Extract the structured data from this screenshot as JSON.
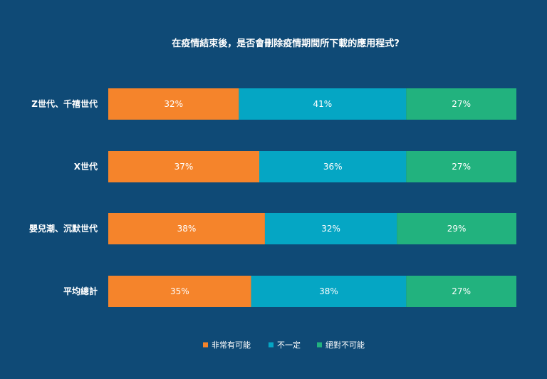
{
  "chart_data": {
    "type": "bar",
    "orientation": "horizontal",
    "stacked": true,
    "normalized": true,
    "title": "在疫情結束後，是否會刪除疫情期間所下載的應用程式?",
    "categories": [
      "Z世代、千禧世代",
      "X世代",
      "嬰兒潮、沉默世代",
      "平均總計"
    ],
    "series": [
      {
        "name": "非常有可能",
        "color": "#f5842b",
        "values": [
          32,
          37,
          38,
          35
        ]
      },
      {
        "name": "不一定",
        "color": "#05a6c4",
        "values": [
          41,
          36,
          32,
          38
        ]
      },
      {
        "name": "絕對不可能",
        "color": "#22b27e",
        "values": [
          27,
          27,
          29,
          27
        ]
      }
    ],
    "value_suffix": "%",
    "xlim": [
      0,
      100
    ],
    "grid": false,
    "legend_position": "bottom-center"
  },
  "colors": {
    "background": "#0f4a76",
    "text": "#ffffff"
  }
}
